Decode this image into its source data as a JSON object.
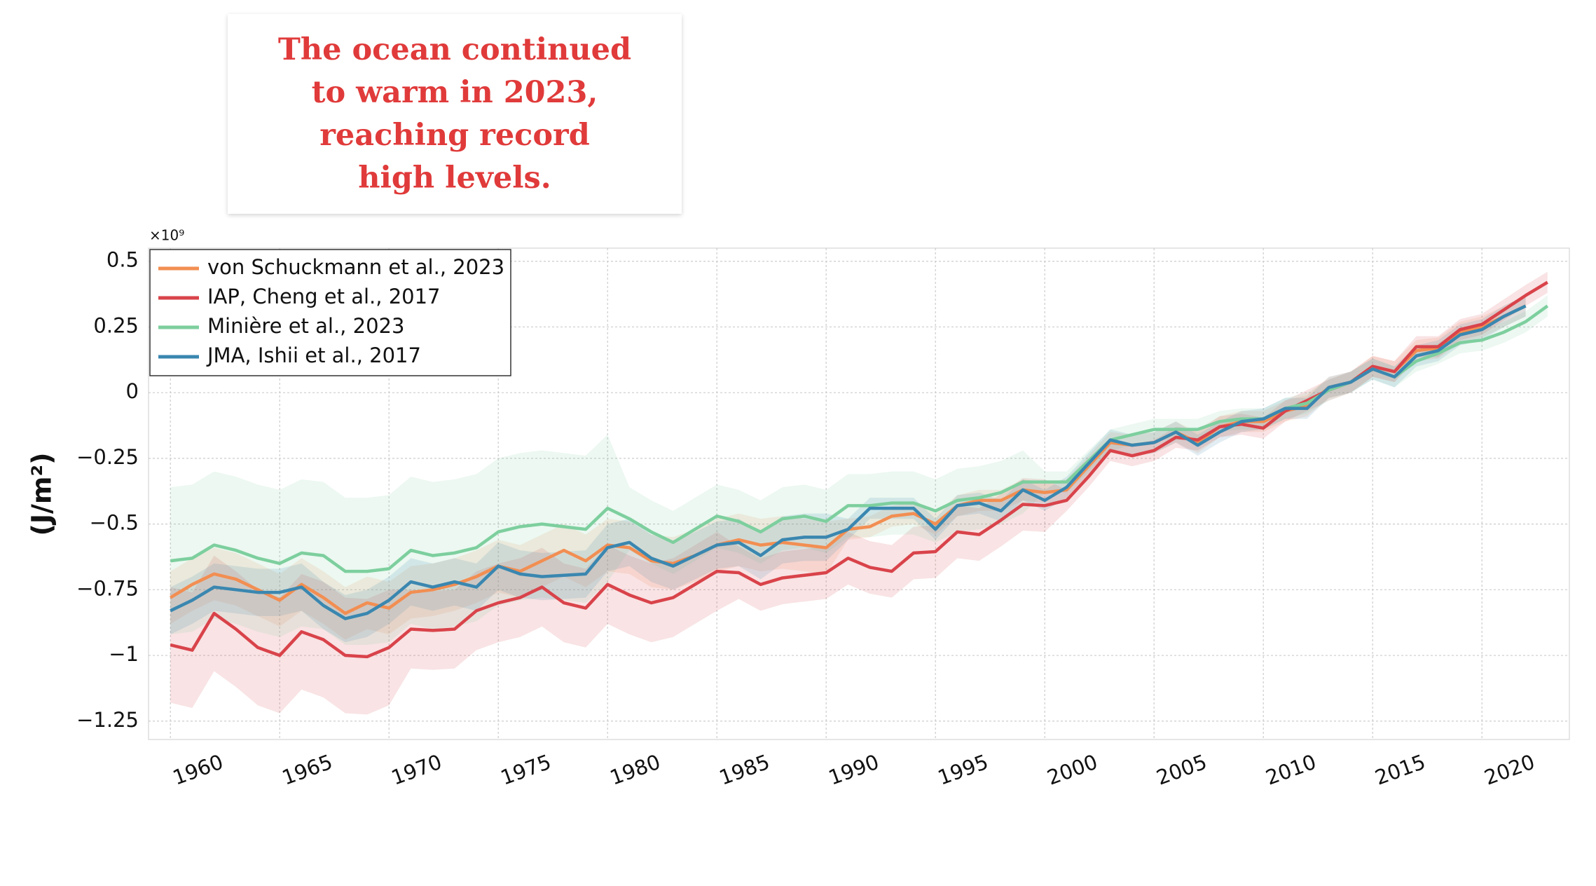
{
  "chart_data": {
    "type": "line",
    "title": "The ocean continued to warm in 2023, reaching record high levels.",
    "y_label": "(J/m²)",
    "y_offset_label": "×10⁹",
    "x": [
      1960,
      1961,
      1962,
      1963,
      1964,
      1965,
      1966,
      1967,
      1968,
      1969,
      1970,
      1971,
      1972,
      1973,
      1974,
      1975,
      1976,
      1977,
      1978,
      1979,
      1980,
      1981,
      1982,
      1983,
      1984,
      1985,
      1986,
      1987,
      1988,
      1989,
      1990,
      1991,
      1992,
      1993,
      1994,
      1995,
      1996,
      1997,
      1998,
      1999,
      2000,
      2001,
      2002,
      2003,
      2004,
      2005,
      2006,
      2007,
      2008,
      2009,
      2010,
      2011,
      2012,
      2013,
      2014,
      2015,
      2016,
      2017,
      2018,
      2019,
      2020,
      2021,
      2022,
      2023
    ],
    "xlim": [
      1959,
      2024
    ],
    "xticks": [
      1960,
      1965,
      1970,
      1975,
      1980,
      1985,
      1990,
      1995,
      2000,
      2005,
      2010,
      2015,
      2020
    ],
    "ylim": [
      -1.32,
      0.55
    ],
    "yticks": [
      0.5,
      0.25,
      0,
      {
        "value": -0.25,
        "label": "−0.25"
      },
      {
        "value": -0.5,
        "label": "−0.5"
      },
      {
        "value": -0.75,
        "label": "−0.75"
      },
      {
        "value": -1,
        "label": "−1"
      },
      {
        "value": -1.25,
        "label": "−1.25"
      }
    ],
    "grid": true,
    "legend": "upper left",
    "series": [
      {
        "name": "von Schuckmann et al., 2023",
        "color": "#f28e52",
        "values": [
          -0.78,
          -0.73,
          -0.69,
          -0.71,
          -0.75,
          -0.79,
          -0.73,
          -0.78,
          -0.84,
          -0.8,
          -0.82,
          -0.76,
          -0.75,
          -0.73,
          -0.7,
          -0.66,
          -0.68,
          -0.64,
          -0.6,
          -0.64,
          -0.58,
          -0.59,
          -0.64,
          -0.65,
          -0.62,
          -0.58,
          -0.56,
          -0.58,
          -0.57,
          -0.58,
          -0.59,
          -0.52,
          -0.51,
          -0.47,
          -0.46,
          -0.5,
          -0.43,
          -0.41,
          -0.41,
          -0.37,
          -0.38,
          -0.37,
          -0.28,
          -0.19,
          -0.2,
          -0.19,
          -0.15,
          -0.19,
          -0.13,
          -0.11,
          -0.11,
          -0.07,
          -0.05,
          0.02,
          0.04,
          0.1,
          0.08,
          0.16,
          0.17,
          0.23,
          0.25,
          0.29,
          0.33,
          null
        ],
        "uncertainty": [
          0.1,
          0.1,
          0.1,
          0.1,
          0.1,
          0.1,
          0.1,
          0.1,
          0.1,
          0.1,
          0.1,
          0.1,
          0.1,
          0.1,
          0.1,
          0.1,
          0.1,
          0.1,
          0.1,
          0.1,
          0.1,
          0.1,
          0.1,
          0.1,
          0.1,
          0.1,
          0.1,
          0.1,
          0.1,
          0.1,
          0.1,
          0.04,
          0.04,
          0.04,
          0.04,
          0.04,
          0.04,
          0.04,
          0.04,
          0.04,
          0.04,
          0.04,
          0.04,
          0.04,
          0.04,
          0.04,
          0.04,
          0.04,
          0.04,
          0.04,
          0.04,
          0.04,
          0.04,
          0.04,
          0.04,
          0.04,
          0.04,
          0.04,
          0.04,
          0.04,
          0.04,
          0.04,
          0.04,
          null
        ]
      },
      {
        "name": "IAP, Cheng et al., 2017",
        "color": "#d9434a",
        "values": [
          -0.96,
          -0.98,
          -0.84,
          -0.9,
          -0.97,
          -1.0,
          -0.91,
          -0.94,
          -1.0,
          -1.005,
          -0.97,
          -0.9,
          -0.905,
          -0.9,
          -0.83,
          -0.8,
          -0.78,
          -0.74,
          -0.8,
          -0.82,
          -0.73,
          -0.77,
          -0.8,
          -0.78,
          -0.73,
          -0.68,
          -0.685,
          -0.73,
          -0.705,
          -0.695,
          -0.685,
          -0.63,
          -0.665,
          -0.68,
          -0.61,
          -0.605,
          -0.53,
          -0.54,
          -0.485,
          -0.425,
          -0.43,
          -0.41,
          -0.32,
          -0.22,
          -0.24,
          -0.22,
          -0.17,
          -0.18,
          -0.13,
          -0.12,
          -0.135,
          -0.07,
          -0.03,
          0.01,
          0.04,
          0.1,
          0.08,
          0.175,
          0.175,
          0.24,
          0.26,
          0.315,
          0.37,
          0.42
        ],
        "uncertainty": [
          0.22,
          0.22,
          0.22,
          0.22,
          0.22,
          0.22,
          0.22,
          0.22,
          0.22,
          0.22,
          0.22,
          0.15,
          0.15,
          0.15,
          0.15,
          0.15,
          0.15,
          0.15,
          0.15,
          0.15,
          0.15,
          0.15,
          0.15,
          0.15,
          0.15,
          0.15,
          0.1,
          0.1,
          0.1,
          0.1,
          0.1,
          0.1,
          0.1,
          0.1,
          0.1,
          0.1,
          0.1,
          0.1,
          0.1,
          0.1,
          0.1,
          0.04,
          0.04,
          0.04,
          0.04,
          0.04,
          0.04,
          0.04,
          0.04,
          0.04,
          0.04,
          0.04,
          0.04,
          0.04,
          0.04,
          0.04,
          0.04,
          0.04,
          0.04,
          0.04,
          0.04,
          0.04,
          0.04,
          0.04
        ]
      },
      {
        "name": "Minière et al., 2023",
        "color": "#7dcf9e",
        "values": [
          -0.64,
          -0.63,
          -0.58,
          -0.6,
          -0.63,
          -0.65,
          -0.61,
          -0.62,
          -0.68,
          -0.68,
          -0.67,
          -0.6,
          -0.62,
          -0.61,
          -0.59,
          -0.53,
          -0.51,
          -0.5,
          -0.51,
          -0.52,
          -0.44,
          -0.48,
          -0.53,
          -0.57,
          -0.52,
          -0.47,
          -0.49,
          -0.53,
          -0.48,
          -0.47,
          -0.49,
          -0.43,
          -0.43,
          -0.42,
          -0.42,
          -0.45,
          -0.41,
          -0.4,
          -0.38,
          -0.34,
          -0.34,
          -0.34,
          -0.26,
          -0.18,
          -0.16,
          -0.14,
          -0.14,
          -0.14,
          -0.11,
          -0.1,
          -0.1,
          -0.06,
          -0.04,
          0.01,
          0.04,
          0.09,
          0.06,
          0.12,
          0.15,
          0.19,
          0.2,
          0.23,
          0.27,
          0.33
        ],
        "uncertainty": [
          0.28,
          0.28,
          0.28,
          0.28,
          0.28,
          0.28,
          0.28,
          0.28,
          0.28,
          0.28,
          0.28,
          0.28,
          0.28,
          0.28,
          0.28,
          0.28,
          0.28,
          0.28,
          0.28,
          0.28,
          0.28,
          0.12,
          0.12,
          0.12,
          0.12,
          0.12,
          0.12,
          0.12,
          0.12,
          0.12,
          0.12,
          0.12,
          0.12,
          0.12,
          0.12,
          0.12,
          0.12,
          0.12,
          0.12,
          0.12,
          0.04,
          0.04,
          0.04,
          0.04,
          0.04,
          0.04,
          0.04,
          0.04,
          0.04,
          0.04,
          0.04,
          0.04,
          0.04,
          0.04,
          0.04,
          0.04,
          0.04,
          0.04,
          0.04,
          0.04,
          0.04,
          0.04,
          0.04,
          0.04
        ]
      },
      {
        "name": "JMA, Ishii et al., 2017",
        "color": "#3a87b0",
        "values": [
          -0.83,
          -0.79,
          -0.74,
          -0.75,
          -0.76,
          -0.76,
          -0.74,
          -0.81,
          -0.86,
          -0.84,
          -0.79,
          -0.72,
          -0.74,
          -0.72,
          -0.74,
          -0.66,
          -0.69,
          -0.7,
          -0.695,
          -0.69,
          -0.59,
          -0.57,
          -0.63,
          -0.66,
          -0.62,
          -0.58,
          -0.57,
          -0.62,
          -0.56,
          -0.55,
          -0.55,
          -0.52,
          -0.44,
          -0.44,
          -0.44,
          -0.52,
          -0.43,
          -0.42,
          -0.45,
          -0.37,
          -0.41,
          -0.36,
          -0.27,
          -0.18,
          -0.2,
          -0.19,
          -0.15,
          -0.2,
          -0.15,
          -0.11,
          -0.1,
          -0.06,
          -0.06,
          0.02,
          0.04,
          0.09,
          0.06,
          0.14,
          0.16,
          0.22,
          0.24,
          0.29,
          0.33,
          null
        ],
        "uncertainty": [
          0.09,
          0.09,
          0.09,
          0.09,
          0.09,
          0.09,
          0.09,
          0.09,
          0.09,
          0.09,
          0.09,
          0.09,
          0.09,
          0.09,
          0.09,
          0.09,
          0.09,
          0.09,
          0.09,
          0.09,
          0.09,
          0.09,
          0.09,
          0.09,
          0.09,
          0.09,
          0.09,
          0.09,
          0.09,
          0.09,
          0.09,
          0.04,
          0.04,
          0.04,
          0.04,
          0.04,
          0.04,
          0.04,
          0.04,
          0.04,
          0.04,
          0.04,
          0.04,
          0.04,
          0.04,
          0.04,
          0.04,
          0.04,
          0.04,
          0.04,
          0.04,
          0.04,
          0.04,
          0.04,
          0.04,
          0.04,
          0.04,
          0.04,
          0.04,
          0.04,
          0.04,
          0.04,
          0.04,
          null
        ]
      }
    ]
  }
}
